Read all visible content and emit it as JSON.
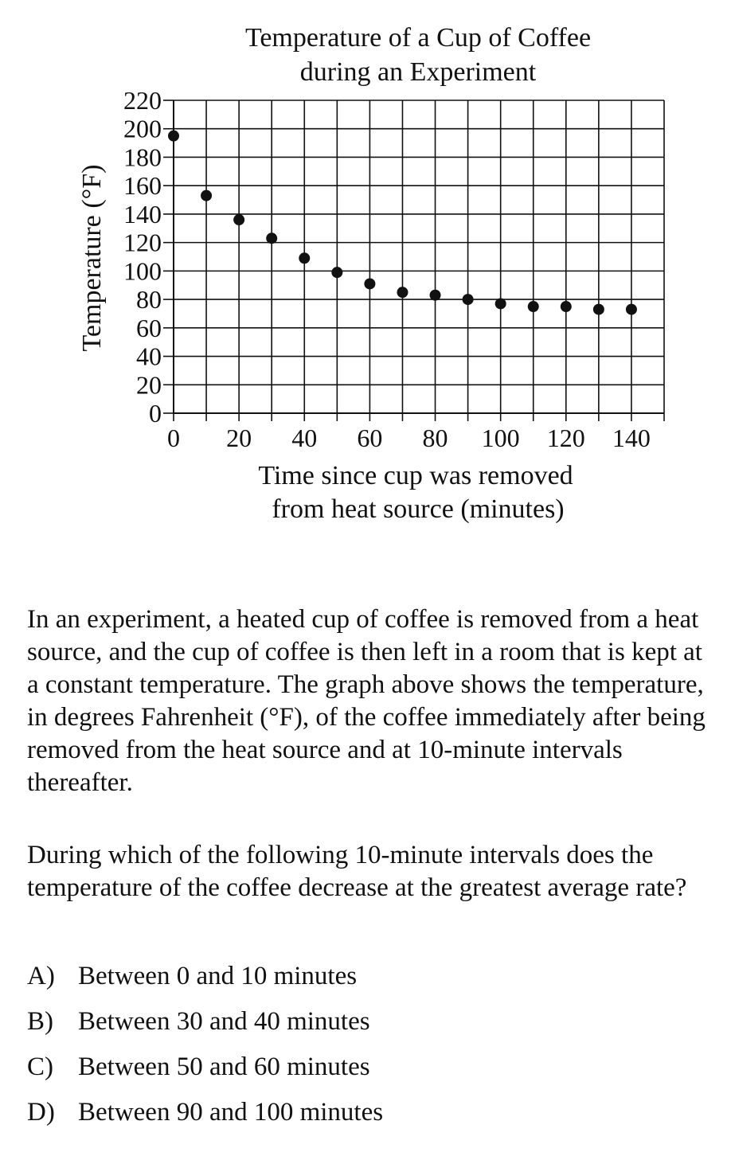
{
  "chart_data": {
    "type": "scatter",
    "title": [
      "Temperature of a Cup of Coffee",
      "during an Experiment"
    ],
    "xlabel": [
      "Time since cup was removed",
      "from heat source (minutes)"
    ],
    "ylabel": "Temperature (°F)",
    "x": [
      0,
      10,
      20,
      30,
      40,
      50,
      60,
      70,
      80,
      90,
      100,
      110,
      120,
      130,
      140
    ],
    "y": [
      195,
      153,
      136,
      123,
      109,
      99,
      91,
      85,
      83,
      80,
      77,
      75,
      75,
      73,
      73
    ],
    "xlim": [
      0,
      150
    ],
    "ylim": [
      0,
      220
    ],
    "xticks": [
      0,
      20,
      40,
      60,
      80,
      100,
      120,
      140
    ],
    "yticks": [
      0,
      20,
      40,
      60,
      80,
      100,
      120,
      140,
      160,
      180,
      200,
      220
    ],
    "grid": true,
    "legend": "none"
  },
  "passage": "In an experiment, a heated cup of coffee is removed from a heat source, and the cup of coffee is then left in a room that is kept at a constant temperature. The graph above shows the temperature, in degrees Fahrenheit (°F), of the coffee immediately after being removed from the heat source and at 10-minute intervals thereafter.",
  "question": "During which of the following 10-minute intervals does the temperature of the coffee decrease at the greatest average rate?",
  "choices": [
    {
      "letter": "A)",
      "text": "Between 0 and 10 minutes"
    },
    {
      "letter": "B)",
      "text": "Between 30 and 40 minutes"
    },
    {
      "letter": "C)",
      "text": "Between 50 and 60 minutes"
    },
    {
      "letter": "D)",
      "text": "Between 90 and 100 minutes"
    }
  ]
}
